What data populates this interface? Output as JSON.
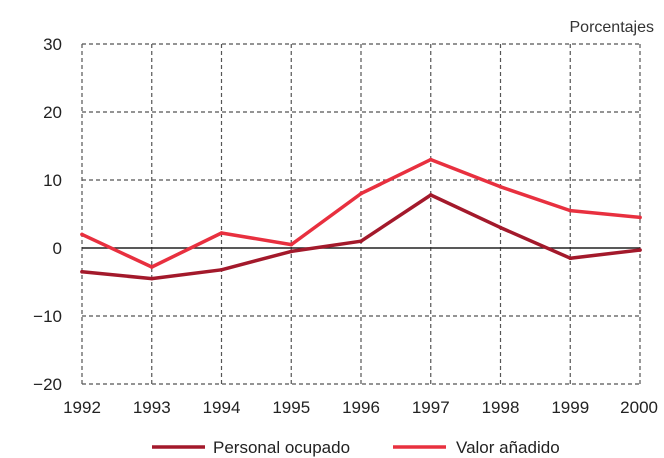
{
  "chart_data": {
    "type": "line",
    "title": "",
    "unit_label": "Porcentajes",
    "x": [
      "1992",
      "1993",
      "1994",
      "1995",
      "1996",
      "1997",
      "1998",
      "1999",
      "2000"
    ],
    "ylim": [
      -20,
      30
    ],
    "yticks": [
      30,
      20,
      10,
      0,
      -10,
      -20
    ],
    "ytick_labels": [
      "30",
      "20",
      "10",
      "0",
      "−10",
      "−20"
    ],
    "grid": true,
    "legend_position": "bottom",
    "series": [
      {
        "name": "Personal ocupado",
        "color": "#a3192b",
        "values": [
          -3.5,
          -4.5,
          -3.2,
          -0.5,
          1.0,
          7.8,
          3.0,
          -1.5,
          -0.3
        ]
      },
      {
        "name": "Valor añadido",
        "color": "#e8303f",
        "values": [
          2.0,
          -2.8,
          2.2,
          0.5,
          8.0,
          13.0,
          9.0,
          5.5,
          4.5
        ]
      }
    ]
  }
}
